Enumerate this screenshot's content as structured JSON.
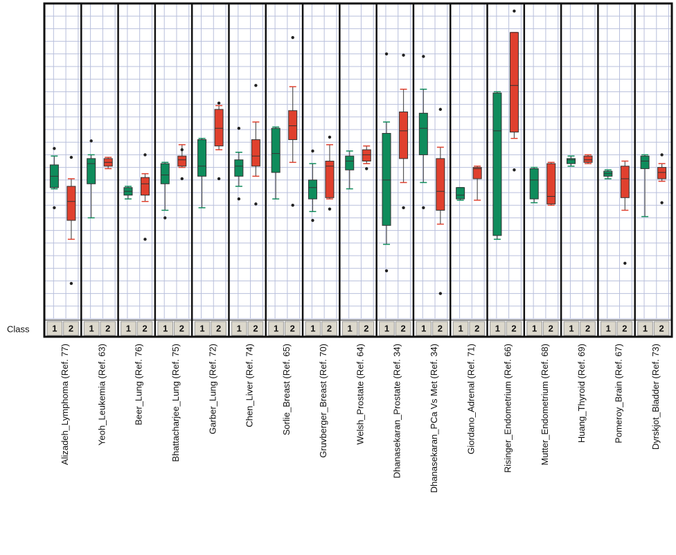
{
  "chart_data": {
    "type": "box",
    "class_label": "Class",
    "categories": [
      "Alizadeh_Lymphoma (Ref. 77)",
      "Yeoh_Leukemia (Ref. 63)",
      "Beer_Lung (Ref. 76)",
      "Bhattacharjee_Lung (Ref. 75)",
      "Garber_Lung (Ref. 72)",
      "Chen_Liver (Ref. 74)",
      "Sorlie_Breast (Ref. 65)",
      "Gruvberger_Breast (Ref. 70)",
      "Welsh_Prostate (Ref. 64)",
      "Dhanasekaran_Prostate (Ref. 34)",
      "Dhanasekaran_PCa Vs Met (Ref. 34)",
      "Giordano_Adrenal (Ref. 71)",
      "Risinger_Endometrium (Ref. 66)",
      "Mutter_Endometrium (Ref. 68)",
      "Huang_Thyroid (Ref. 69)",
      "Pomeroy_Brain (Ref. 67)",
      "Dyrskjot_Bladder (Ref. 73)"
    ],
    "ylim": [
      0,
      25
    ],
    "yticks": [
      0,
      1,
      2,
      3,
      4,
      5,
      6,
      7,
      8,
      9,
      10,
      11,
      12,
      13,
      14,
      15,
      16,
      17,
      18,
      19,
      20,
      21,
      22,
      23,
      24,
      25
    ],
    "grid": true,
    "series": [
      {
        "name": "1",
        "color": "#0f8c5c",
        "boxes": [
          {
            "min": 10.3,
            "q1": 10.4,
            "median": 11.3,
            "q3": 12.2,
            "max": 12.9,
            "outliers": [
              13.5,
              8.8
            ]
          },
          {
            "min": 8.0,
            "q1": 10.7,
            "median": 12.3,
            "q3": 12.7,
            "max": 13.0,
            "outliers": [
              14.1
            ]
          },
          {
            "min": 9.5,
            "q1": 9.8,
            "median": 10.1,
            "q3": 10.4,
            "max": 10.5,
            "outliers": []
          },
          {
            "min": 8.6,
            "q1": 10.7,
            "median": 11.4,
            "q3": 12.3,
            "max": 12.4,
            "outliers": [
              8.0
            ]
          },
          {
            "min": 8.8,
            "q1": 11.3,
            "median": 12.1,
            "q3": 14.2,
            "max": 14.3,
            "outliers": []
          },
          {
            "min": 10.5,
            "q1": 11.3,
            "median": 12.1,
            "q3": 12.6,
            "max": 13.2,
            "outliers": [
              15.1,
              9.5
            ]
          },
          {
            "min": 9.5,
            "q1": 11.6,
            "median": 13.1,
            "q3": 15.1,
            "max": 15.2,
            "outliers": []
          },
          {
            "min": 8.5,
            "q1": 9.5,
            "median": 10.4,
            "q3": 11.0,
            "max": 12.3,
            "outliers": [
              13.3,
              7.8
            ]
          },
          {
            "min": 10.3,
            "q1": 11.8,
            "median": 12.5,
            "q3": 12.9,
            "max": 13.3,
            "outliers": []
          },
          {
            "min": 5.9,
            "q1": 7.4,
            "median": 11.0,
            "q3": 14.7,
            "max": 15.6,
            "outliers": [
              21.0,
              3.8
            ]
          },
          {
            "min": 10.8,
            "q1": 13.0,
            "median": 15.1,
            "q3": 16.3,
            "max": 18.2,
            "outliers": [
              20.8,
              8.8
            ]
          },
          {
            "min": 9.4,
            "q1": 9.5,
            "median": 9.8,
            "q3": 10.4,
            "max": 10.4,
            "outliers": []
          },
          {
            "min": 6.3,
            "q1": 6.6,
            "median": 14.9,
            "q3": 17.9,
            "max": 18.0,
            "outliers": []
          },
          {
            "min": 9.2,
            "q1": 9.5,
            "median": 11.0,
            "q3": 11.9,
            "max": 12.0,
            "outliers": []
          },
          {
            "min": 12.1,
            "q1": 12.3,
            "median": 12.6,
            "q3": 12.7,
            "max": 12.9,
            "outliers": []
          },
          {
            "min": 11.1,
            "q1": 11.3,
            "median": 11.5,
            "q3": 11.7,
            "max": 11.8,
            "outliers": []
          },
          {
            "min": 8.1,
            "q1": 11.9,
            "median": 12.5,
            "q3": 12.9,
            "max": 13.0,
            "outliers": []
          }
        ]
      },
      {
        "name": "2",
        "color": "#e0402e",
        "boxes": [
          {
            "min": 6.3,
            "q1": 7.8,
            "median": 9.3,
            "q3": 10.5,
            "max": 11.1,
            "outliers": [
              12.8,
              2.8
            ]
          },
          {
            "min": 11.9,
            "q1": 12.1,
            "median": 12.4,
            "q3": 12.7,
            "max": 12.8,
            "outliers": []
          },
          {
            "min": 9.3,
            "q1": 9.8,
            "median": 10.7,
            "q3": 11.2,
            "max": 11.5,
            "outliers": [
              13.0,
              6.3
            ]
          },
          {
            "min": 12.0,
            "q1": 12.1,
            "median": 12.6,
            "q3": 12.9,
            "max": 13.8,
            "outliers": [
              13.4,
              11.1
            ]
          },
          {
            "min": 13.4,
            "q1": 13.7,
            "median": 15.1,
            "q3": 16.6,
            "max": 16.9,
            "outliers": [
              17.1,
              11.1
            ]
          },
          {
            "min": 11.3,
            "q1": 12.1,
            "median": 12.9,
            "q3": 14.2,
            "max": 15.6,
            "outliers": [
              18.5,
              9.1
            ]
          },
          {
            "min": 12.4,
            "q1": 14.2,
            "median": 15.3,
            "q3": 16.5,
            "max": 18.4,
            "outliers": [
              22.3,
              9.0
            ]
          },
          {
            "min": 9.5,
            "q1": 9.6,
            "median": 12.1,
            "q3": 12.5,
            "max": 13.8,
            "outliers": [
              14.4,
              8.7
            ]
          },
          {
            "min": 12.3,
            "q1": 12.5,
            "median": 13.0,
            "q3": 13.4,
            "max": 13.7,
            "outliers": [
              11.9
            ]
          },
          {
            "min": 10.8,
            "q1": 12.7,
            "median": 14.9,
            "q3": 16.4,
            "max": 18.2,
            "outliers": [
              20.9,
              8.8
            ]
          },
          {
            "min": 7.5,
            "q1": 8.6,
            "median": 10.1,
            "q3": 12.7,
            "max": 13.6,
            "outliers": [
              16.6,
              2.0
            ]
          },
          {
            "min": 9.4,
            "q1": 11.1,
            "median": 11.9,
            "q3": 12.0,
            "max": 12.1,
            "outliers": []
          },
          {
            "min": 14.3,
            "q1": 14.8,
            "median": 18.5,
            "q3": 22.7,
            "max": 22.7,
            "outliers": [
              24.4,
              11.8
            ]
          },
          {
            "min": 9.0,
            "q1": 9.1,
            "median": 9.7,
            "q3": 12.3,
            "max": 12.4,
            "outliers": []
          },
          {
            "min": 12.3,
            "q1": 12.4,
            "median": 12.6,
            "q3": 12.9,
            "max": 13.0,
            "outliers": []
          },
          {
            "min": 8.6,
            "q1": 9.6,
            "median": 11.1,
            "q3": 12.1,
            "max": 12.5,
            "outliers": [
              4.4
            ]
          },
          {
            "min": 10.9,
            "q1": 11.1,
            "median": 11.6,
            "q3": 12.0,
            "max": 12.3,
            "outliers": [
              13.0,
              9.2
            ]
          }
        ]
      }
    ]
  }
}
